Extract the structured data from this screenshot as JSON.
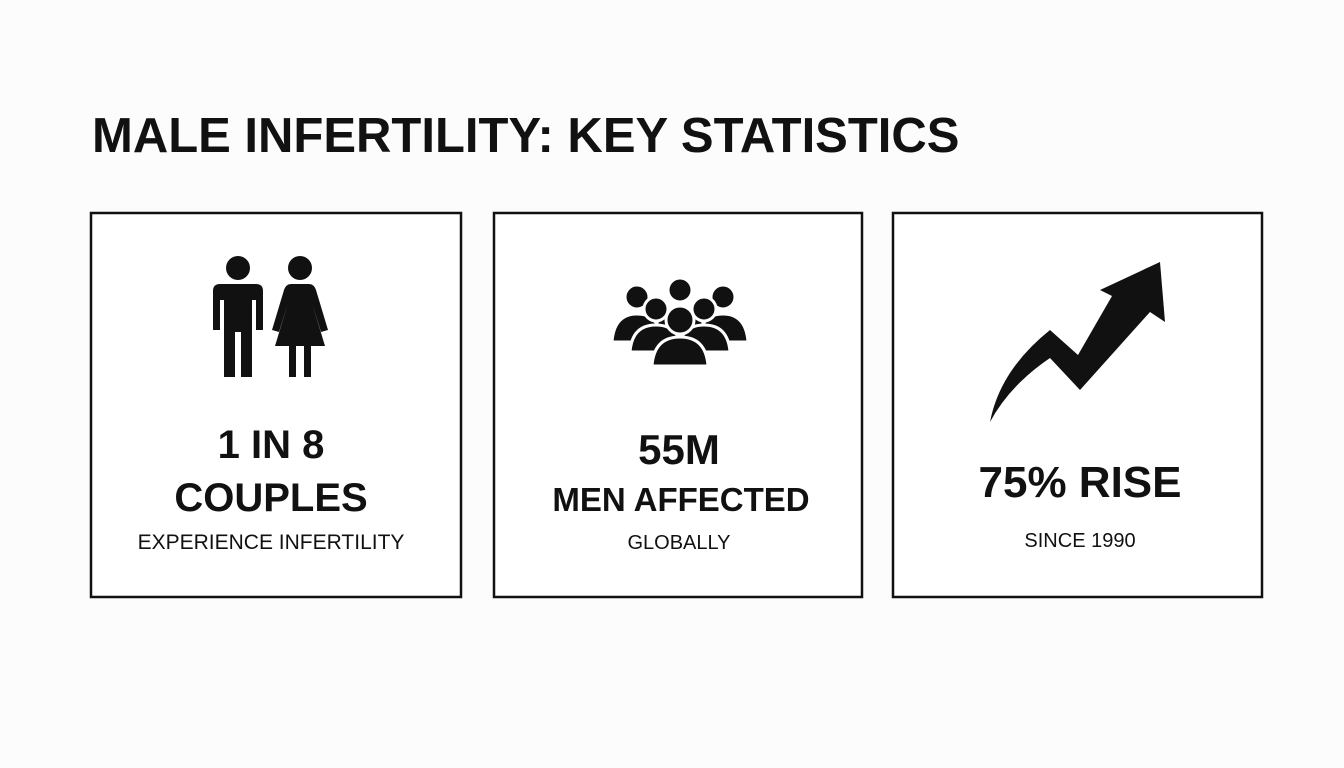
{
  "title": "MALE INFERTILITY: KEY STATISTICS",
  "cards": [
    {
      "lines": [
        "1 IN 8",
        "COUPLES"
      ],
      "caption": "EXPERIENCE INFERTILITY"
    },
    {
      "lines": [
        "55M",
        "MEN AFFECTED"
      ],
      "caption": "GLOBALLY"
    },
    {
      "lines": [
        "75% RISE"
      ],
      "caption": "SINCE 1990"
    }
  ]
}
